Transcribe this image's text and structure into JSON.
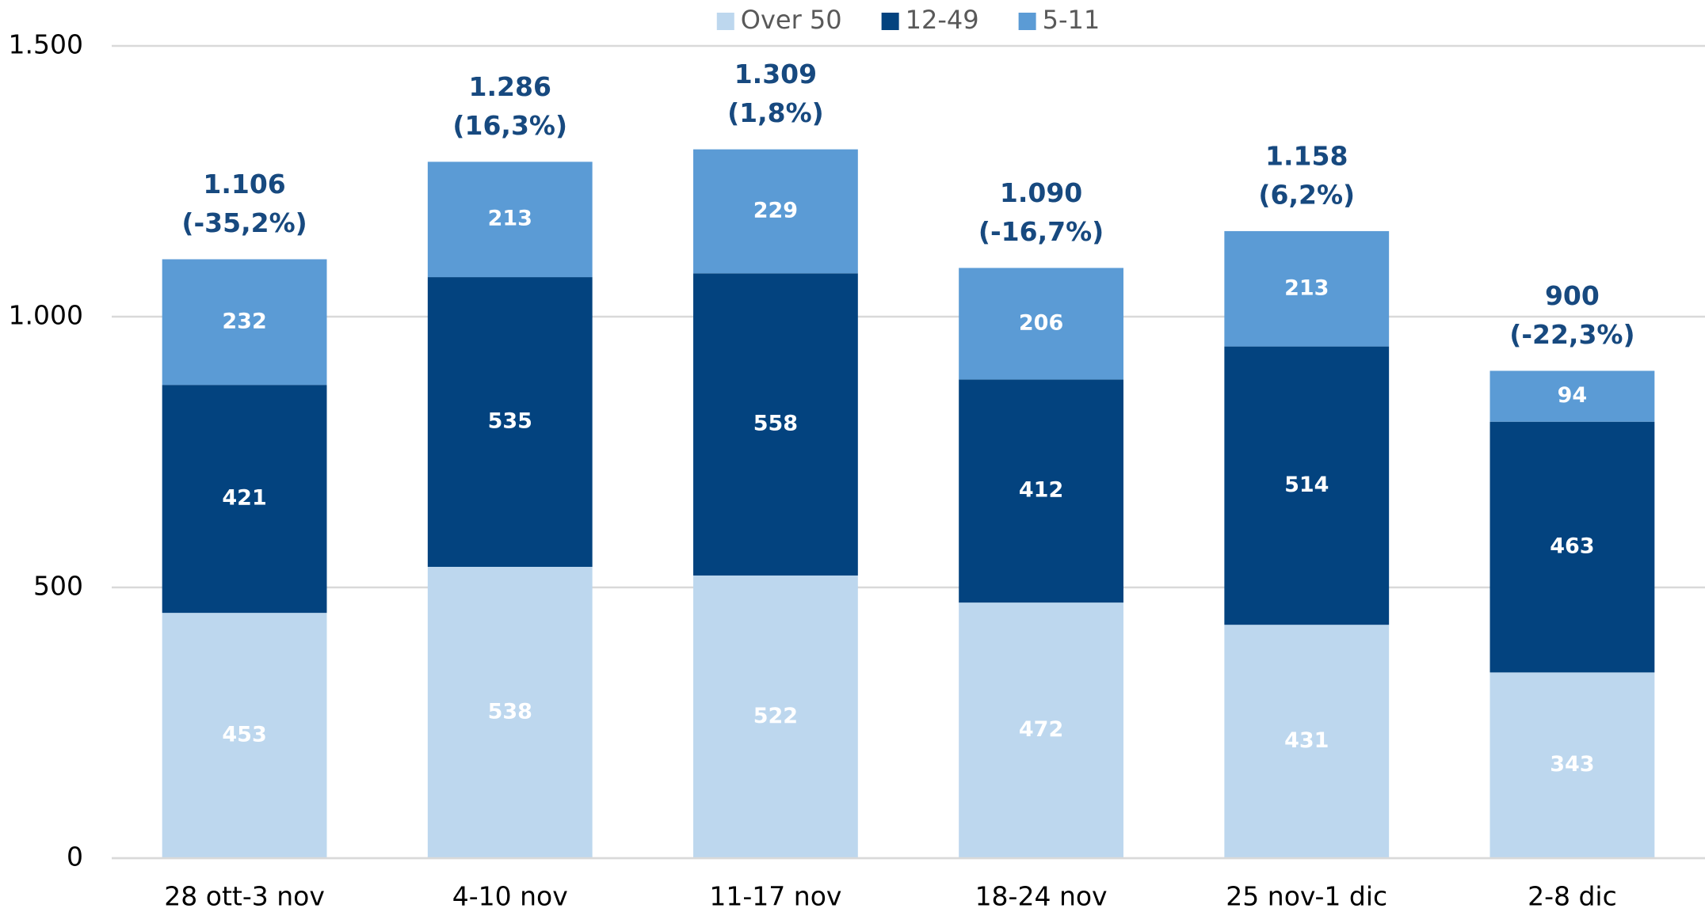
{
  "chart_data": {
    "type": "stacked_bar",
    "categories": [
      "28 ott-3 nov",
      "4-10 nov",
      "11-17 nov",
      "18-24 nov",
      "25 nov-1 dic",
      "2-8 dic"
    ],
    "series": [
      {
        "name": "Over 50",
        "color": "#bdd7ee",
        "values": [
          453,
          538,
          522,
          472,
          431,
          343
        ]
      },
      {
        "name": "12-49",
        "color": "#03437f",
        "values": [
          421,
          535,
          558,
          412,
          514,
          463
        ]
      },
      {
        "name": "5-11",
        "color": "#5b9bd5",
        "values": [
          232,
          213,
          229,
          206,
          213,
          94
        ]
      }
    ],
    "totals": [
      {
        "value": 1106,
        "label": "1.106",
        "change": -35.2,
        "change_label": "(-35,2%)"
      },
      {
        "value": 1286,
        "label": "1.286",
        "change": 16.3,
        "change_label": "(16,3%)"
      },
      {
        "value": 1309,
        "label": "1.309",
        "change": 1.8,
        "change_label": "(1,8%)"
      },
      {
        "value": 1090,
        "label": "1.090",
        "change": -16.7,
        "change_label": "(-16,7%)"
      },
      {
        "value": 1158,
        "label": "1.158",
        "change": 6.2,
        "change_label": "(6,2%)"
      },
      {
        "value": 900,
        "label": "900",
        "change": -22.3,
        "change_label": "(-22,3%)"
      }
    ],
    "ylim": [
      0,
      1500
    ],
    "yticks": [
      0,
      500,
      {
        "value": 1000,
        "label": "1.000"
      },
      {
        "value": 1500,
        "label": "1.500"
      }
    ],
    "grid": true,
    "legend": "top"
  }
}
